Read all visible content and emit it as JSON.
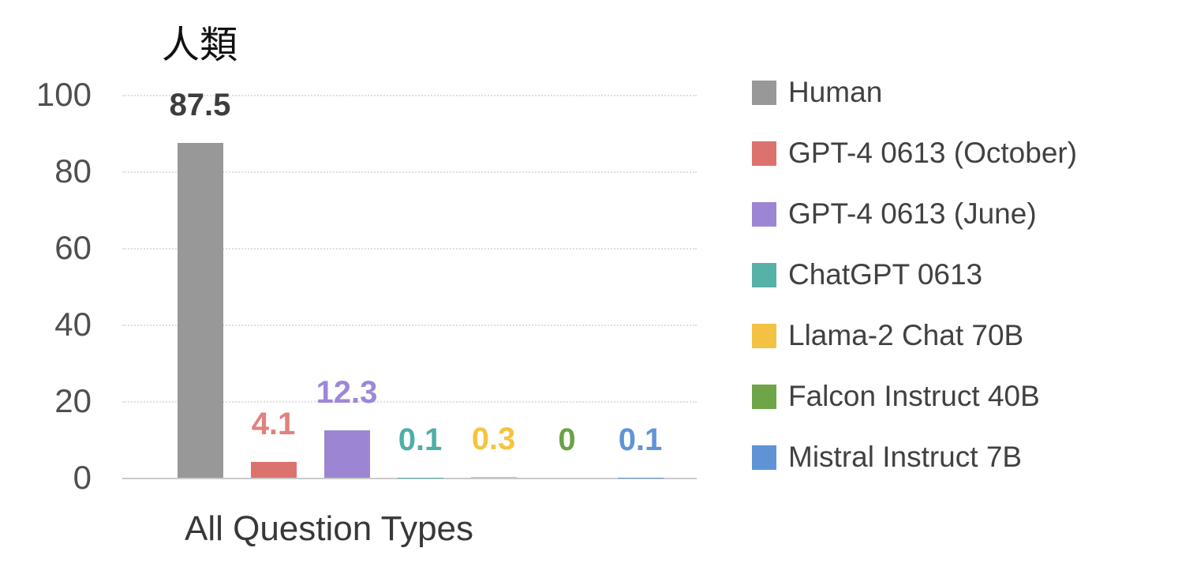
{
  "chart_data": {
    "type": "bar",
    "title": "人類",
    "xlabel": "All Question Types",
    "ylabel": "",
    "ylim": [
      0,
      100
    ],
    "y_ticks": [
      100,
      80,
      60,
      40,
      20,
      0
    ],
    "grid": "horizontal-dotted",
    "legend_position": "right",
    "categories": [
      "All Question Types"
    ],
    "series": [
      {
        "name": "Human",
        "value": 87.5,
        "label": "87.5",
        "color": "#989898",
        "label_color": "#3d3d3d"
      },
      {
        "name": "GPT-4 0613 (October)",
        "value": 4.1,
        "label": "4.1",
        "color": "#dc726d",
        "label_color": "#e0827d"
      },
      {
        "name": "GPT-4 0613 (June)",
        "value": 12.3,
        "label": "12.3",
        "color": "#9c85d3",
        "label_color": "#9d87d8"
      },
      {
        "name": "ChatGPT 0613",
        "value": 0.1,
        "label": "0.1",
        "color": "#56b1a8",
        "label_color": "#4fafa6"
      },
      {
        "name": "Llama-2 Chat 70B",
        "value": 0.3,
        "label": "0.3",
        "color": "#f4c242",
        "label_color": "#f5c43e"
      },
      {
        "name": "Falcon Instruct 40B",
        "value": 0,
        "label": "0",
        "color": "#70a547",
        "label_color": "#6ba244"
      },
      {
        "name": "Mistral Instruct 7B",
        "value": 0.1,
        "label": "0.1",
        "color": "#5f93d6",
        "label_color": "#6094d8"
      }
    ]
  },
  "style_tokens": {
    "gridline_color": "#dedede",
    "baseline_color": "#c9c9c9",
    "tick_label_color": "#4f4f4f",
    "axis_title_color": "#383838",
    "legend_text_color": "#414141",
    "background_color": "#ffffff"
  }
}
